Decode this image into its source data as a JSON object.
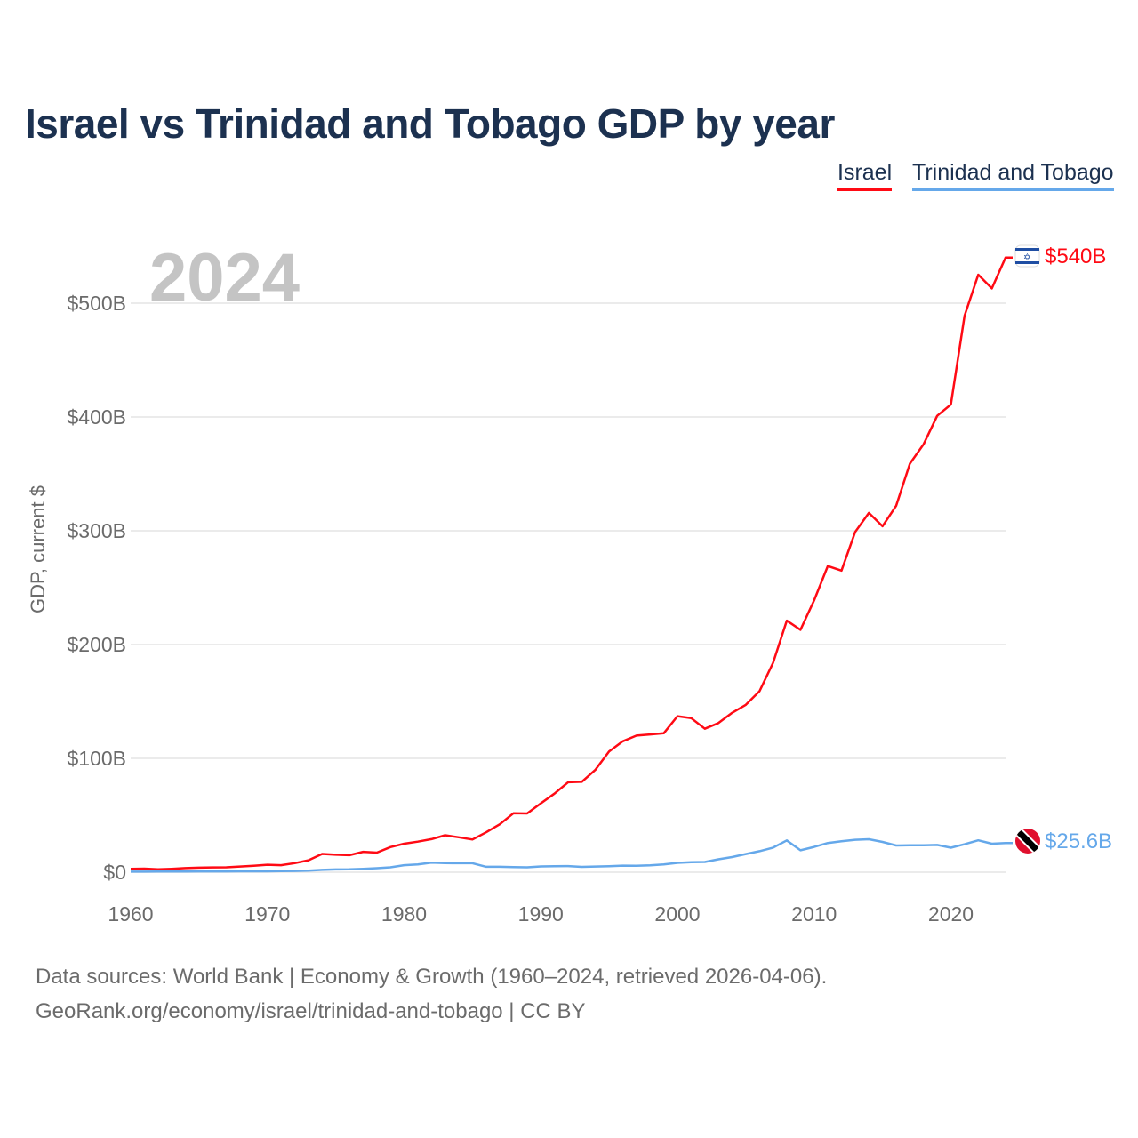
{
  "chart_data": {
    "type": "line",
    "title": "Israel vs Trinidad and Tobago GDP by year",
    "ylabel": "GDP, current $",
    "xlabel": "",
    "year_label": "2024",
    "xlim": [
      1960,
      2024
    ],
    "ylim": [
      0,
      540
    ],
    "x_ticks": [
      1960,
      1970,
      1980,
      1990,
      2000,
      2010,
      2020
    ],
    "y_ticks": [
      0,
      100,
      200,
      300,
      400,
      500
    ],
    "y_tick_labels": [
      "$0",
      "$100B",
      "$200B",
      "$300B",
      "$400B",
      "$500B"
    ],
    "grid": true,
    "legend_placement": "top-right",
    "x": [
      1960,
      1961,
      1962,
      1963,
      1964,
      1965,
      1966,
      1967,
      1968,
      1969,
      1970,
      1971,
      1972,
      1973,
      1974,
      1975,
      1976,
      1977,
      1978,
      1979,
      1980,
      1981,
      1982,
      1983,
      1984,
      1985,
      1986,
      1987,
      1988,
      1989,
      1990,
      1991,
      1992,
      1993,
      1994,
      1995,
      1996,
      1997,
      1998,
      1999,
      2000,
      2001,
      2002,
      2003,
      2004,
      2005,
      2006,
      2007,
      2008,
      2009,
      2010,
      2011,
      2012,
      2013,
      2014,
      2015,
      2016,
      2017,
      2018,
      2019,
      2020,
      2021,
      2022,
      2023,
      2024
    ],
    "series": [
      {
        "name": "Israel",
        "color": "#ff0a14",
        "end_label": "$540B",
        "values": [
          3.0,
          3.1,
          2.5,
          3.0,
          3.6,
          4.0,
          4.2,
          4.3,
          5.0,
          5.7,
          6.6,
          6.2,
          8.0,
          10.5,
          16.0,
          15.3,
          14.9,
          17.9,
          17.2,
          22.0,
          25.0,
          26.8,
          29.0,
          32.4,
          30.6,
          28.7,
          35.0,
          42.0,
          51.7,
          51.6,
          60.5,
          69.0,
          79.0,
          79.4,
          90.0,
          106.0,
          115.0,
          120.0,
          121.0,
          122.0,
          137.0,
          135.4,
          126.0,
          131.0,
          140.0,
          147.0,
          159.0,
          184.0,
          221.0,
          213.0,
          239.0,
          269.0,
          265.0,
          299.0,
          315.7,
          304.0,
          322.0,
          359.0,
          376.0,
          401.0,
          411.0,
          489.0,
          525.0,
          513.0,
          540.0
        ]
      },
      {
        "name": "Trinidad and Tobago",
        "color": "#65a8ea",
        "end_label": "$25.6B",
        "values": [
          0.5,
          0.5,
          0.6,
          0.6,
          0.6,
          0.7,
          0.7,
          0.7,
          0.8,
          0.8,
          0.8,
          0.9,
          1.1,
          1.3,
          2.0,
          2.4,
          2.5,
          2.9,
          3.5,
          4.3,
          6.2,
          6.9,
          8.4,
          8.0,
          7.9,
          7.9,
          4.8,
          4.8,
          4.5,
          4.3,
          5.1,
          5.3,
          5.4,
          4.7,
          5.0,
          5.3,
          5.8,
          5.7,
          6.0,
          6.8,
          8.2,
          8.8,
          9.0,
          11.3,
          13.3,
          15.9,
          18.4,
          21.6,
          27.9,
          19.2,
          22.2,
          25.6,
          27.1,
          28.4,
          28.9,
          26.6,
          23.4,
          23.6,
          23.7,
          23.9,
          21.5,
          24.5,
          28.0,
          25.0,
          25.6
        ]
      }
    ]
  },
  "source_line1": "Data sources: World Bank | Economy & Growth (1960–2024, retrieved 2026-04-06).",
  "source_line2": "GeoRank.org/economy/israel/trinidad-and-tobago | CC BY"
}
